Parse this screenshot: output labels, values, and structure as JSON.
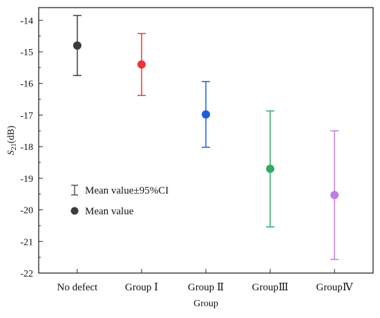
{
  "chart_data": {
    "type": "scatter",
    "variant": "mean-with-error-bars",
    "xlabel": "Group",
    "ylabel": "S21(dB)",
    "ylabel_parts": {
      "main": "S",
      "sub": "21",
      "suffix": "(dB)"
    },
    "ylim": [
      -22,
      -13.6
    ],
    "yticks": [
      -22,
      -21,
      -20,
      -19,
      -18,
      -17,
      -16,
      -15,
      -14
    ],
    "grid": false,
    "legend_position": "lower-left",
    "legend": {
      "ci_label": "Mean value±95%CI",
      "mean_label": "Mean value"
    },
    "series": [
      {
        "category": "No defect",
        "mean": -14.8,
        "ci_low": -15.75,
        "ci_high": -13.85,
        "color": "#3c3c3c"
      },
      {
        "category": "Group Ⅰ",
        "mean": -15.4,
        "ci_low": -16.38,
        "ci_high": -14.42,
        "color": "#ee3338"
      },
      {
        "category": "Group Ⅱ",
        "mean": -16.98,
        "ci_low": -18.02,
        "ci_high": -15.94,
        "color": "#1d5fdb"
      },
      {
        "category": "GroupⅢ",
        "mean": -18.7,
        "ci_low": -20.54,
        "ci_high": -16.87,
        "color": "#2faa67"
      },
      {
        "category": "GroupⅣ",
        "mean": -19.53,
        "ci_low": -21.57,
        "ci_high": -17.5,
        "color": "#c07fe1"
      }
    ]
  }
}
